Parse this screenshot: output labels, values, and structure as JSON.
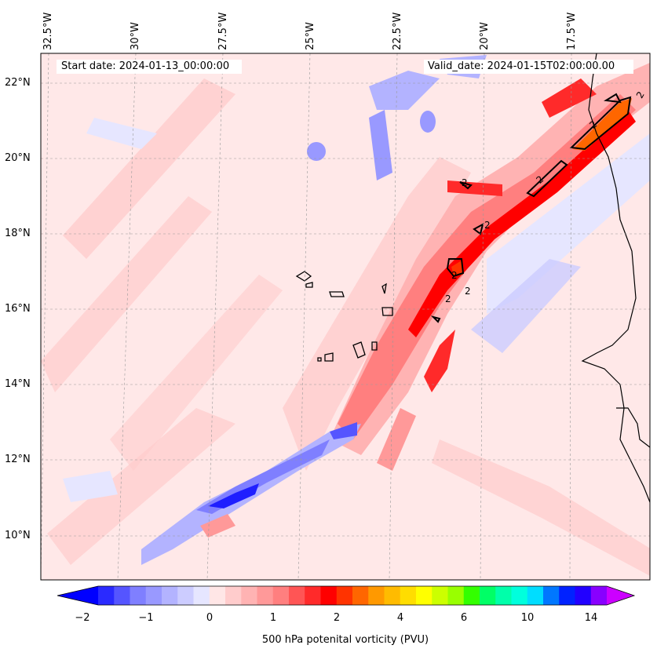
{
  "header": {
    "start_date": "Start date: 2024-01-13_00:00:00",
    "valid_date": "Valid_date: 2024-01-15T02:00:00.00"
  },
  "longitude_labels": [
    "32.5°W",
    "30°W",
    "27.5°W",
    "25°W",
    "22.5°W",
    "20°W",
    "17.5°W"
  ],
  "latitude_labels": [
    "22°N",
    "20°N",
    "18°N",
    "16°N",
    "14°N",
    "12°N",
    "10°N"
  ],
  "contour_labels": [
    "2",
    "2",
    "2",
    "2",
    "2",
    "2",
    "2",
    "2"
  ],
  "colorbar": {
    "title": "500 hPa potenital vorticity (PVU)",
    "ticks": [
      "−2",
      "−1",
      "0",
      "1",
      "2",
      "4",
      "6",
      "10",
      "14"
    ],
    "colors": [
      "#0000ff",
      "#2a2aff",
      "#5555ff",
      "#7f7fff",
      "#9999ff",
      "#b3b3ff",
      "#ccccff",
      "#e6e6ff",
      "#ffe6e6",
      "#ffcccc",
      "#ffb3b3",
      "#ff9999",
      "#ff7f7f",
      "#ff5555",
      "#ff2a2a",
      "#ff0000",
      "#ff3300",
      "#ff6600",
      "#ff9900",
      "#ffbb00",
      "#ffdd00",
      "#ffff00",
      "#ccff00",
      "#99ff00",
      "#33ff00",
      "#00ff66",
      "#00ffaa",
      "#00ffdd",
      "#00ddff",
      "#0077ff",
      "#0022ff",
      "#2200ff",
      "#8800ff",
      "#cc00ff"
    ]
  },
  "colors": {
    "background_pv": "#ffe8e8",
    "light_blue": "#e6e6ff",
    "light_red": "#ffcccc",
    "red": "#ff0000",
    "blue": "#1f1fff",
    "orange": "#ff6600"
  }
}
